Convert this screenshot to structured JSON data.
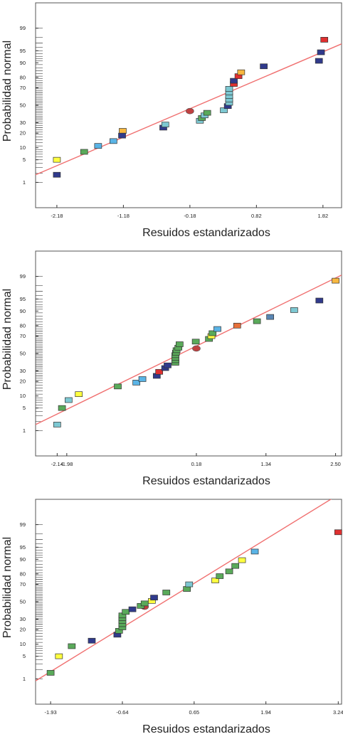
{
  "chart_data": [
    {
      "type": "scatter",
      "title": "",
      "xlabel": "Resuidos estandarizados",
      "ylabel": "Probabilidad normal",
      "xticks": [
        -2.18,
        -1.18,
        -0.18,
        0.82,
        1.82
      ],
      "xtick_labels": [
        "-2.18",
        "-1.18",
        "-0.18",
        "0.82",
        "1.82"
      ],
      "yticks": [
        1,
        5,
        10,
        20,
        30,
        50,
        70,
        80,
        90,
        95,
        99
      ],
      "yscale": "normal-probability",
      "xlim": [
        -2.5,
        2.1
      ],
      "ylim": [
        0.1,
        99.9
      ],
      "grid": false,
      "fit_line": {
        "x": [
          -2.5,
          2.1
        ],
        "y": [
          1.8,
          96.8
        ],
        "color": "#f07070"
      },
      "series": [
        {
          "x": -2.18,
          "y": 5,
          "color": "#ffff40"
        },
        {
          "x": -2.18,
          "y": 1.8,
          "color": "#303a8c"
        },
        {
          "x": -1.77,
          "y": 8,
          "color": "#5aaa5a"
        },
        {
          "x": -1.56,
          "y": 11,
          "color": "#5ab4e6"
        },
        {
          "x": -1.33,
          "y": 14,
          "color": "#5ab4e6"
        },
        {
          "x": -1.19,
          "y": 22,
          "color": "#f8b840"
        },
        {
          "x": -1.2,
          "y": 18,
          "color": "#303a8c"
        },
        {
          "x": -0.58,
          "y": 25,
          "color": "#303a8c"
        },
        {
          "x": -0.55,
          "y": 28,
          "color": "#7dc8d2"
        },
        {
          "x": -0.18,
          "y": 43,
          "color": "#c04040",
          "marker": "ellipse"
        },
        {
          "x": -0.03,
          "y": 32,
          "color": "#7dc8d2"
        },
        {
          "x": 0.0,
          "y": 35,
          "color": "#5aaa5a"
        },
        {
          "x": 0.04,
          "y": 38,
          "color": "#7dc8d2"
        },
        {
          "x": 0.08,
          "y": 41,
          "color": "#5aaa5a"
        },
        {
          "x": 0.33,
          "y": 44,
          "color": "#7dc8d2"
        },
        {
          "x": 0.39,
          "y": 49,
          "color": "#303a8c"
        },
        {
          "x": 0.41,
          "y": 53,
          "color": "#7dc8d2"
        },
        {
          "x": 0.41,
          "y": 57,
          "color": "#7dc8d2"
        },
        {
          "x": 0.41,
          "y": 61,
          "color": "#7dc8d2"
        },
        {
          "x": 0.41,
          "y": 65,
          "color": "#7dc8d2"
        },
        {
          "x": 0.41,
          "y": 69,
          "color": "#7dc8d2"
        },
        {
          "x": 0.48,
          "y": 74,
          "color": "#e03030"
        },
        {
          "x": 0.48,
          "y": 77,
          "color": "#303a8c"
        },
        {
          "x": 0.55,
          "y": 81,
          "color": "#e03030"
        },
        {
          "x": 0.59,
          "y": 84,
          "color": "#f8b840"
        },
        {
          "x": 0.93,
          "y": 88,
          "color": "#303a8c"
        },
        {
          "x": 1.76,
          "y": 91,
          "color": "#303a8c"
        },
        {
          "x": 1.79,
          "y": 94.5,
          "color": "#303a8c"
        },
        {
          "x": 1.84,
          "y": 97.6,
          "color": "#e03030"
        }
      ]
    },
    {
      "type": "scatter",
      "title": "",
      "xlabel": "Resuidos estandarizados",
      "ylabel": "Probabilidad normal",
      "xticks": [
        -2.14,
        -1.98,
        0.18,
        1.34,
        2.5
      ],
      "xtick_labels": [
        "-2.14",
        "-1.98",
        "0.18",
        "1.34",
        "2.50"
      ],
      "yticks": [
        1,
        5,
        10,
        20,
        30,
        50,
        70,
        80,
        90,
        95,
        99
      ],
      "yscale": "normal-probability",
      "xlim": [
        -2.5,
        2.6
      ],
      "ylim": [
        0.1,
        99.9
      ],
      "grid": false,
      "fit_line": {
        "x": [
          -2.5,
          2.6
        ],
        "y": [
          1.6,
          99.1
        ],
        "color": "#f07070"
      },
      "series": [
        {
          "x": -2.14,
          "y": 1.6,
          "color": "#7dc8d2"
        },
        {
          "x": -2.06,
          "y": 5,
          "color": "#5aaa5a"
        },
        {
          "x": -1.95,
          "y": 8,
          "color": "#7dc8d2"
        },
        {
          "x": -1.78,
          "y": 11,
          "color": "#ffff40"
        },
        {
          "x": -1.13,
          "y": 16,
          "color": "#5aaa5a"
        },
        {
          "x": -0.82,
          "y": 19,
          "color": "#5ab4e6"
        },
        {
          "x": -0.72,
          "y": 22,
          "color": "#5ab4e6"
        },
        {
          "x": -0.48,
          "y": 25,
          "color": "#303a8c"
        },
        {
          "x": -0.44,
          "y": 29,
          "color": "#e03030"
        },
        {
          "x": -0.34,
          "y": 33,
          "color": "#303a8c"
        },
        {
          "x": -0.3,
          "y": 36,
          "color": "#303a8c"
        },
        {
          "x": -0.17,
          "y": 39,
          "color": "#5aaa5a"
        },
        {
          "x": -0.17,
          "y": 42,
          "color": "#5aaa5a"
        },
        {
          "x": -0.17,
          "y": 45,
          "color": "#5aaa5a"
        },
        {
          "x": -0.17,
          "y": 48,
          "color": "#5aaa5a"
        },
        {
          "x": -0.16,
          "y": 51,
          "color": "#5aaa5a"
        },
        {
          "x": -0.15,
          "y": 54,
          "color": "#5aaa5a"
        },
        {
          "x": -0.12,
          "y": 57,
          "color": "#5aaa5a"
        },
        {
          "x": -0.1,
          "y": 61,
          "color": "#5aaa5a"
        },
        {
          "x": 0.18,
          "y": 56,
          "color": "#c04040",
          "marker": "ellipse"
        },
        {
          "x": 0.17,
          "y": 64,
          "color": "#5aaa5a"
        },
        {
          "x": 0.39,
          "y": 67,
          "color": "#5aaa5a"
        },
        {
          "x": 0.43,
          "y": 70,
          "color": "#ffff40"
        },
        {
          "x": 0.45,
          "y": 73,
          "color": "#5aaa5a"
        },
        {
          "x": 0.53,
          "y": 77,
          "color": "#5ab4e6"
        },
        {
          "x": 0.86,
          "y": 80,
          "color": "#e8703a"
        },
        {
          "x": 1.19,
          "y": 83.5,
          "color": "#5aaa5a"
        },
        {
          "x": 1.41,
          "y": 86.5,
          "color": "#5a86b4"
        },
        {
          "x": 1.81,
          "y": 90.5,
          "color": "#7dc8d2"
        },
        {
          "x": 2.23,
          "y": 94.5,
          "color": "#303a8c"
        },
        {
          "x": 2.5,
          "y": 98.6,
          "color": "#f8b840"
        }
      ]
    },
    {
      "type": "scatter",
      "title": "",
      "xlabel": "Resuidos estandarizados",
      "ylabel": "Probabilidad normal",
      "xticks": [
        -1.93,
        -0.64,
        0.65,
        1.94,
        3.24
      ],
      "xtick_labels": [
        "-1.93",
        "-0.64",
        "0.65",
        "1.94",
        "3.24"
      ],
      "yticks": [
        1,
        5,
        10,
        20,
        30,
        50,
        70,
        80,
        90,
        95,
        99
      ],
      "yscale": "normal-probability",
      "xlim": [
        -2.2,
        3.3
      ],
      "ylim": [
        0.1,
        99.9
      ],
      "grid": false,
      "fit_line": {
        "x": [
          -2.2,
          3.3
        ],
        "y": [
          0.85,
          99.95
        ],
        "color": "#f07070"
      },
      "series": [
        {
          "x": -1.93,
          "y": 1.6,
          "color": "#5aaa5a"
        },
        {
          "x": -1.78,
          "y": 5,
          "color": "#ffff40"
        },
        {
          "x": -1.55,
          "y": 9,
          "color": "#5aaa5a"
        },
        {
          "x": -1.19,
          "y": 12,
          "color": "#303a8c"
        },
        {
          "x": -0.73,
          "y": 16,
          "color": "#303a8c"
        },
        {
          "x": -0.7,
          "y": 19,
          "color": "#5aaa5a"
        },
        {
          "x": -0.64,
          "y": 22,
          "color": "#5aaa5a"
        },
        {
          "x": -0.64,
          "y": 25,
          "color": "#5aaa5a"
        },
        {
          "x": -0.64,
          "y": 28,
          "color": "#5aaa5a"
        },
        {
          "x": -0.64,
          "y": 31,
          "color": "#5aaa5a"
        },
        {
          "x": -0.64,
          "y": 34,
          "color": "#5aaa5a"
        },
        {
          "x": -0.58,
          "y": 38,
          "color": "#5aaa5a"
        },
        {
          "x": -0.46,
          "y": 41,
          "color": "#303a8c"
        },
        {
          "x": -0.24,
          "y": 44,
          "color": "#c04040",
          "marker": "ellipse"
        },
        {
          "x": -0.31,
          "y": 45,
          "color": "#5aaa5a"
        },
        {
          "x": -0.24,
          "y": 48,
          "color": "#5aaa5a"
        },
        {
          "x": -0.11,
          "y": 51,
          "color": "#ffff40"
        },
        {
          "x": -0.07,
          "y": 55,
          "color": "#303a8c"
        },
        {
          "x": 0.15,
          "y": 61,
          "color": "#5aaa5a"
        },
        {
          "x": 0.52,
          "y": 65,
          "color": "#5aaa5a"
        },
        {
          "x": 0.56,
          "y": 70,
          "color": "#7dc8d2"
        },
        {
          "x": 1.03,
          "y": 74,
          "color": "#ffff40"
        },
        {
          "x": 1.11,
          "y": 78,
          "color": "#5aaa5a"
        },
        {
          "x": 1.28,
          "y": 82,
          "color": "#5aaa5a"
        },
        {
          "x": 1.39,
          "y": 86,
          "color": "#5aaa5a"
        },
        {
          "x": 1.51,
          "y": 89.5,
          "color": "#ffff40"
        },
        {
          "x": 1.74,
          "y": 93.5,
          "color": "#5ab4e6"
        },
        {
          "x": 3.24,
          "y": 98.2,
          "color": "#e03030"
        }
      ]
    }
  ]
}
